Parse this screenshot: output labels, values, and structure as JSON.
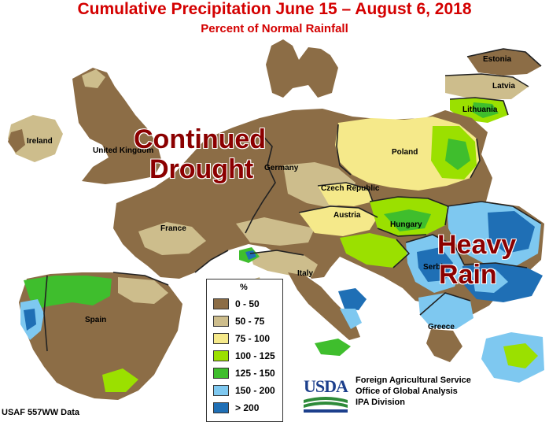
{
  "title": "Cumulative Precipitation June 15 – August 6, 2018",
  "subtitle": "Percent of Normal Rainfall",
  "countries": {
    "estonia": "Estonia",
    "latvia": "Latvia",
    "lithuania": "Lithuania",
    "ireland": "Ireland",
    "uk": "United Kingdom",
    "poland": "Poland",
    "germany": "Germany",
    "czech": "Czech Republic",
    "austria": "Austria",
    "hungary": "Hungary",
    "france": "France",
    "italy": "Italy",
    "serbia": "Serbia",
    "spain": "Spain",
    "greece": "Greece"
  },
  "annotations": {
    "drought_line1": "Continued",
    "drought_line2": "Drought",
    "rain_line1": "Heavy",
    "rain_line2": "Rain"
  },
  "legend": {
    "unit": "%",
    "items": [
      {
        "label": "0 - 50",
        "color": "#8c6d46"
      },
      {
        "label": "50 - 75",
        "color": "#cdbd8c"
      },
      {
        "label": "75 - 100",
        "color": "#f5e98a"
      },
      {
        "label": "100 - 125",
        "color": "#9be000"
      },
      {
        "label": "125 - 150",
        "color": "#3fbe2d"
      },
      {
        "label": "150 - 200",
        "color": "#7ec8f0"
      },
      {
        "label": "> 200",
        "color": "#1f6fb5"
      }
    ]
  },
  "source": "USAF 557WW Data",
  "agency": {
    "logo": "USDA",
    "line1": "Foreign Agricultural Service",
    "line2": "Office of Global Analysis",
    "line3": "IPA Division"
  },
  "colors": {
    "title": "#d40000",
    "callout": "#8b0000",
    "water": "#ffffff",
    "border": "#222222",
    "usda_blue": "#1c3f8c",
    "usda_green": "#2e8b3a"
  }
}
